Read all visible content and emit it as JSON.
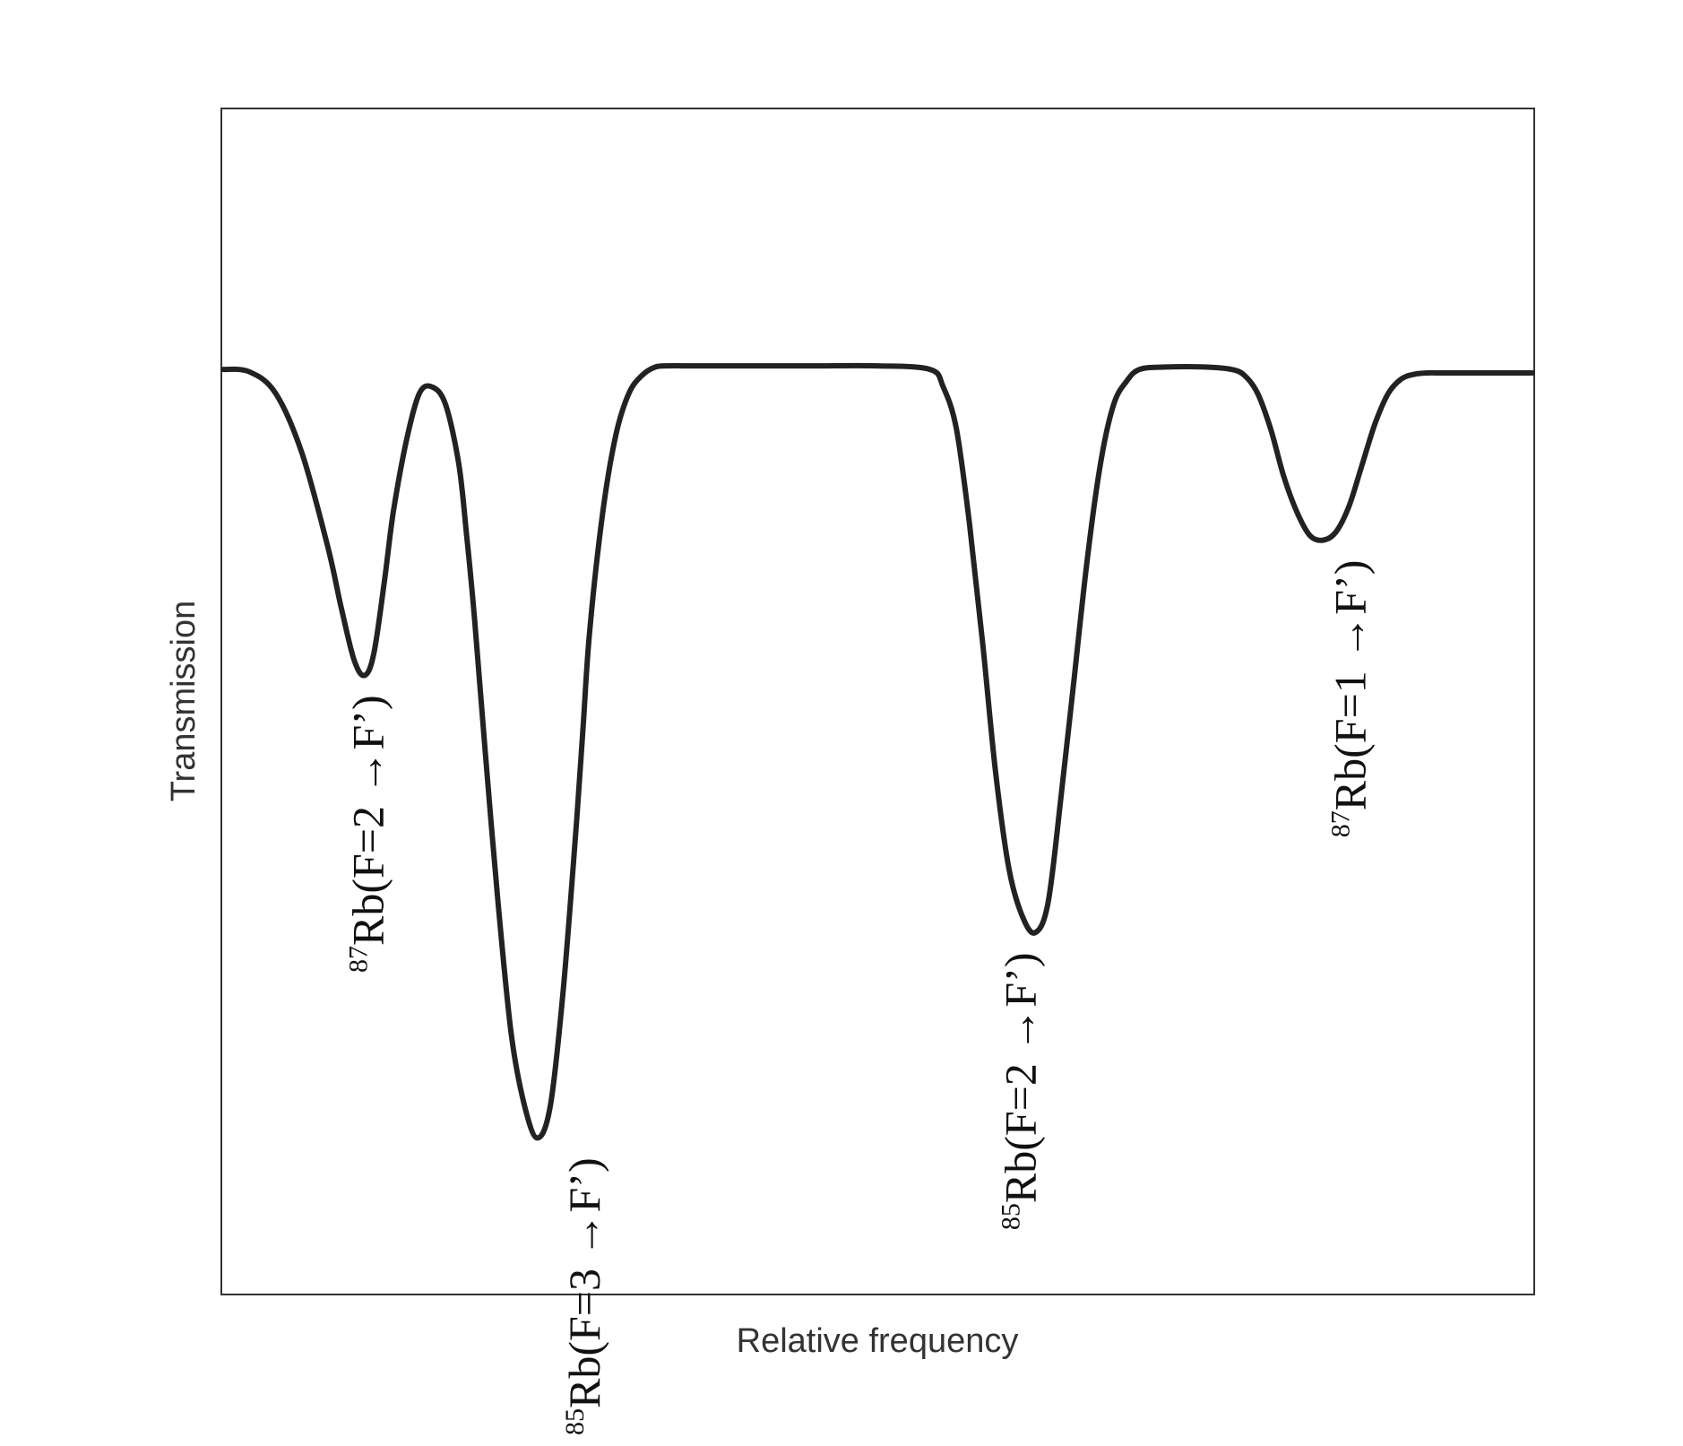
{
  "chart_data": {
    "type": "line",
    "xlabel": "Relative frequency",
    "ylabel": "Transmission",
    "xlim": [
      0,
      100
    ],
    "ylim": [
      0,
      100
    ],
    "grid": false,
    "series": [
      {
        "x": [
          0,
          2,
          4,
          6,
          8,
          9,
          10,
          10.8,
          11.5,
          12.3,
          13,
          14,
          15,
          16,
          17,
          18,
          18.6,
          19.2,
          20,
          21,
          22,
          23,
          24,
          25,
          26,
          27,
          27.5,
          28,
          29,
          30,
          31,
          32,
          33,
          34,
          35,
          36,
          37,
          38,
          40,
          45,
          50,
          54,
          55,
          56,
          57,
          58,
          59,
          60,
          61,
          62,
          63,
          64,
          65,
          66,
          67,
          68,
          69,
          70,
          72,
          75,
          77,
          78,
          79,
          80,
          81,
          82,
          83,
          84,
          85,
          86,
          87,
          88,
          89,
          90,
          91,
          92,
          93,
          94,
          96,
          98,
          100
        ],
        "y": [
          78,
          77.8,
          76,
          71,
          63,
          58,
          53.5,
          52.2,
          54,
          60,
          66,
          72,
          76,
          76.5,
          75,
          70,
          64,
          57,
          46,
          33,
          22,
          16,
          13.2,
          16,
          26,
          40,
          48,
          56,
          66,
          72.5,
          76,
          77.5,
          78.2,
          78.3,
          78.3,
          78.3,
          78.3,
          78.3,
          78.3,
          78.3,
          78.3,
          78,
          76.5,
          73,
          65,
          55,
          44,
          36,
          32,
          30.5,
          33,
          42,
          52,
          62,
          70,
          75,
          77,
          78,
          78.2,
          78.2,
          78,
          77.5,
          76,
          73,
          69,
          66,
          64,
          63.6,
          64.3,
          66.5,
          70,
          73.5,
          76,
          77.2,
          77.6,
          77.7,
          77.7,
          77.7,
          77.7,
          77.7,
          77.7
        ]
      }
    ],
    "annotations": [
      {
        "mass": "87",
        "label": "Rb(F=2 →F’)",
        "x": 11.0,
        "y": 52.2
      },
      {
        "mass": "85",
        "label": "Rb(F=3 →F’)",
        "x": 27.5,
        "y": 13.2
      },
      {
        "mass": "85",
        "label": "Rb(F=2 →F’)",
        "x": 60.8,
        "y": 30.5
      },
      {
        "mass": "87",
        "label": "Rb(F=1 →F’)",
        "x": 86.0,
        "y": 63.6
      }
    ]
  }
}
